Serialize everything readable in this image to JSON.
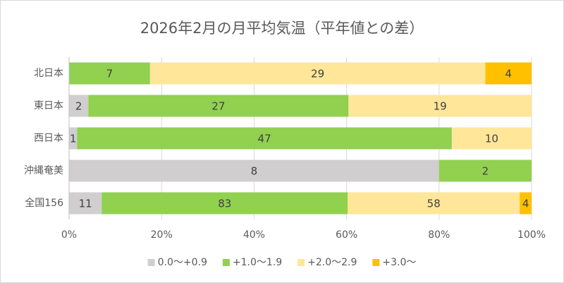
{
  "chart_data": {
    "type": "bar",
    "orientation": "horizontal",
    "stacking": "percent",
    "title": "2026年2月の月平均気温（平年値との差）",
    "categories": [
      "北日本",
      "東日本",
      "西日本",
      "沖縄奄美",
      "全国156"
    ],
    "series": [
      {
        "name": "0.0〜+0.9",
        "color": "#d0cece",
        "values": [
          null,
          2,
          1,
          8,
          11
        ]
      },
      {
        "name": "+1.0〜1.9",
        "color": "#92d050",
        "values": [
          7,
          27,
          47,
          2,
          83
        ]
      },
      {
        "name": "+2.0〜2.9",
        "color": "#ffe699",
        "values": [
          29,
          19,
          10,
          null,
          58
        ]
      },
      {
        "name": "+3.0〜",
        "color": "#ffc000",
        "values": [
          4,
          null,
          null,
          null,
          4
        ]
      }
    ],
    "xlim": [
      0,
      100
    ],
    "xticks": [
      {
        "value": 0,
        "label": "0%"
      },
      {
        "value": 20,
        "label": "20%"
      },
      {
        "value": 40,
        "label": "40%"
      },
      {
        "value": 60,
        "label": "60%"
      },
      {
        "value": 80,
        "label": "80%"
      },
      {
        "value": 100,
        "label": "100%"
      }
    ],
    "grid": true,
    "legend": "bottom"
  }
}
